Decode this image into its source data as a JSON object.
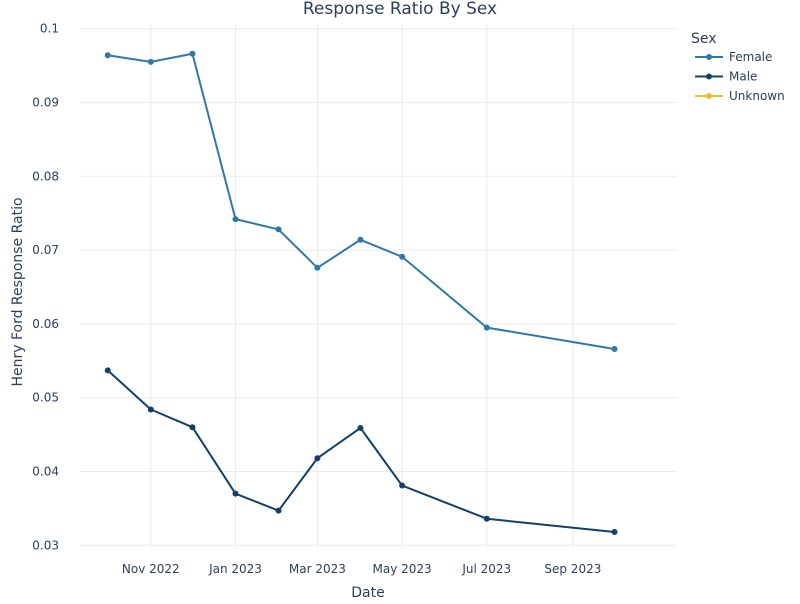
{
  "chart_data": {
    "type": "line",
    "title": "Response Ratio By Sex",
    "xlabel": "Date",
    "ylabel": "Henry Ford Response Ratio",
    "x_range": [
      "2022-09-11",
      "2023-11-15"
    ],
    "ylim": [
      0.0295,
      0.1005
    ],
    "x_ticks": [
      {
        "date": "2022-11-01",
        "label": "Nov 2022"
      },
      {
        "date": "2023-01-01",
        "label": "Jan 2023"
      },
      {
        "date": "2023-03-01",
        "label": "Mar 2023"
      },
      {
        "date": "2023-05-01",
        "label": "May 2023"
      },
      {
        "date": "2023-07-01",
        "label": "Jul 2023"
      },
      {
        "date": "2023-09-01",
        "label": "Sep 2023"
      }
    ],
    "y_ticks": [
      {
        "value": 0.03,
        "label": "0.03"
      },
      {
        "value": 0.04,
        "label": "0.04"
      },
      {
        "value": 0.05,
        "label": "0.05"
      },
      {
        "value": 0.06,
        "label": "0.06"
      },
      {
        "value": 0.07,
        "label": "0.07"
      },
      {
        "value": 0.08,
        "label": "0.08"
      },
      {
        "value": 0.09,
        "label": "0.09"
      },
      {
        "value": 0.1,
        "label": "0.1"
      }
    ],
    "grid": true,
    "legend": {
      "title": "Sex",
      "position": "top-right"
    },
    "series": [
      {
        "name": "Female",
        "color": "#2e78ac",
        "points": [
          {
            "x": "2022-10-01",
            "y": 0.0964
          },
          {
            "x": "2022-11-01",
            "y": 0.0955
          },
          {
            "x": "2022-12-01",
            "y": 0.0966
          },
          {
            "x": "2023-01-01",
            "y": 0.0742
          },
          {
            "x": "2023-02-01",
            "y": 0.0728
          },
          {
            "x": "2023-03-01",
            "y": 0.0676
          },
          {
            "x": "2023-04-01",
            "y": 0.0714
          },
          {
            "x": "2023-05-01",
            "y": 0.0691
          },
          {
            "x": "2023-07-01",
            "y": 0.0595
          },
          {
            "x": "2023-10-01",
            "y": 0.0566
          }
        ]
      },
      {
        "name": "Male",
        "color": "#143f66",
        "points": [
          {
            "x": "2022-10-01",
            "y": 0.0537
          },
          {
            "x": "2022-11-01",
            "y": 0.0484
          },
          {
            "x": "2022-12-01",
            "y": 0.046
          },
          {
            "x": "2023-01-01",
            "y": 0.037
          },
          {
            "x": "2023-02-01",
            "y": 0.0347
          },
          {
            "x": "2023-03-01",
            "y": 0.0418
          },
          {
            "x": "2023-04-01",
            "y": 0.0459
          },
          {
            "x": "2023-05-01",
            "y": 0.0381
          },
          {
            "x": "2023-07-01",
            "y": 0.0336
          },
          {
            "x": "2023-10-01",
            "y": 0.0318
          }
        ]
      },
      {
        "name": "Unknown",
        "color": "#f2bd2c",
        "points": []
      }
    ]
  }
}
